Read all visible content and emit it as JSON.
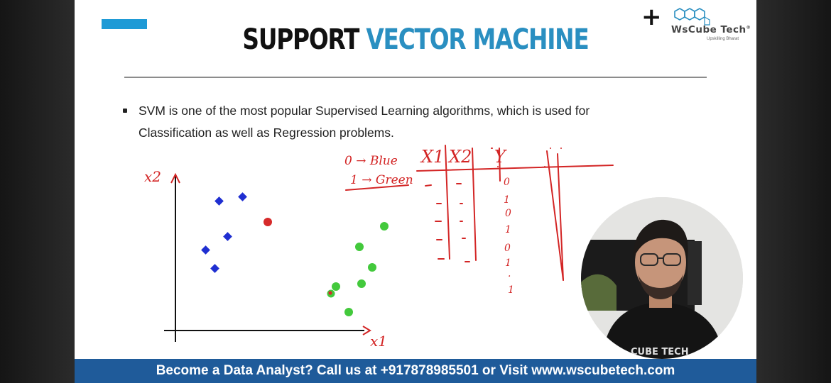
{
  "colors": {
    "accent_blue": "#1e9ad6",
    "title_blue": "#2a8fc1",
    "footer_bg": "#1f5b9a",
    "ink_red": "#d32525",
    "point_blue": "#1f2fd1",
    "point_green": "#43c93c",
    "point_red": "#d62a2a"
  },
  "slide": {
    "title_part1": "SUPPORT",
    "title_part2": "VECTOR MACHINE",
    "logo": {
      "plus": "+",
      "brand": "WsCube Tech",
      "registered": "®",
      "tagline": "Upskilling Bharat"
    },
    "bullets": [
      {
        "line1": "SVM is one of the most popular Supervised Learning algorithms, which is used for",
        "line2": "Classification as well as Regression problems."
      }
    ]
  },
  "annotation": {
    "axis_y_label": "x2",
    "axis_x_label": "x1",
    "legend_line1": "0 → Blue",
    "legend_line2": "1 → Green",
    "table_headers": [
      "X1",
      "X2",
      "Y"
    ],
    "table_y_values": [
      "0",
      "1",
      "0",
      "1",
      "0",
      "1",
      "·",
      "1"
    ]
  },
  "webcam": {
    "shirt_text": "CUBE TECH"
  },
  "footer": {
    "text": "Become a Data Analyst? Call us at +917878985501 or Visit www.wscubetech.com"
  }
}
